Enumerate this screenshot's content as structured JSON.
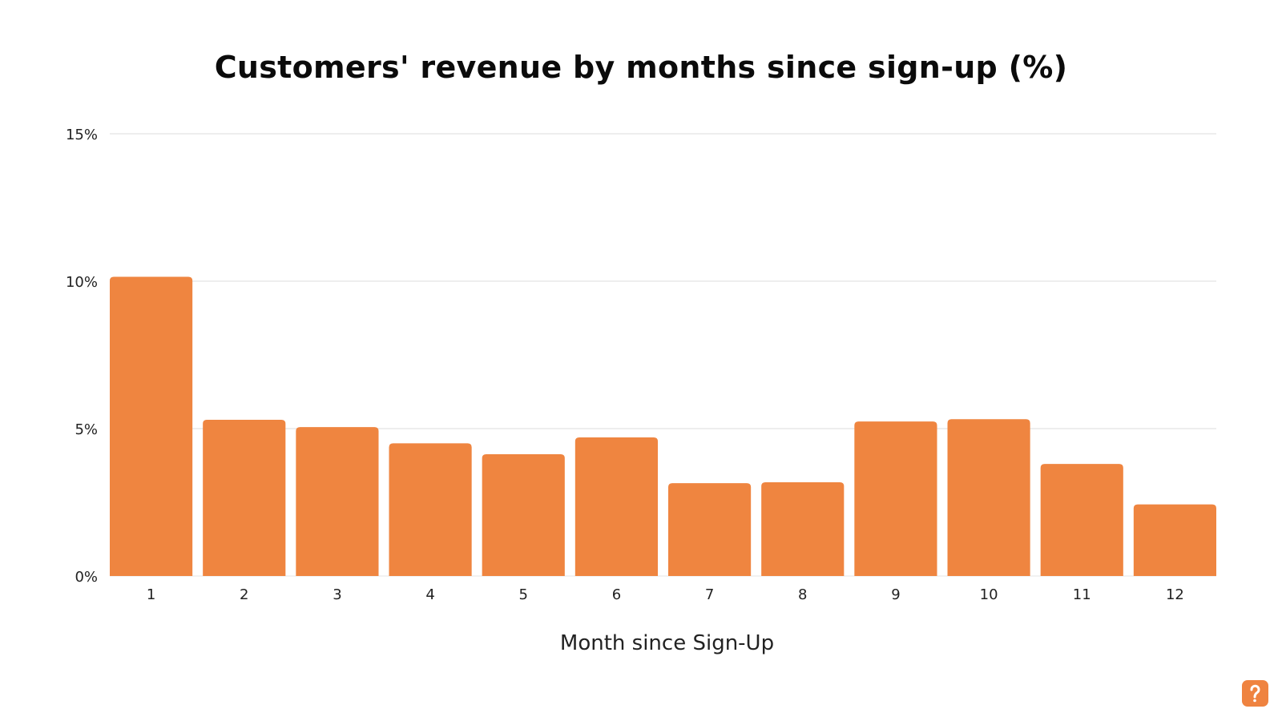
{
  "chart_data": {
    "type": "bar",
    "title": "Customers' revenue by months since sign-up (%)",
    "xlabel": "Month since Sign-Up",
    "ylabel": "",
    "categories": [
      "1",
      "2",
      "3",
      "4",
      "5",
      "6",
      "7",
      "8",
      "9",
      "10",
      "11",
      "12"
    ],
    "values": [
      10.15,
      5.3,
      5.05,
      4.5,
      4.13,
      4.7,
      3.15,
      3.18,
      5.24,
      5.32,
      3.8,
      2.43
    ],
    "ylim": [
      0,
      15
    ],
    "yticks": [
      0,
      5,
      10,
      15
    ],
    "ytick_labels": [
      "0%",
      "5%",
      "10%",
      "15%"
    ],
    "grid": true,
    "bar_color": "#ef8540",
    "grid_color": "#dddddd"
  },
  "logo": {
    "icon": "brand-logo-icon",
    "color": "#ef8340"
  }
}
